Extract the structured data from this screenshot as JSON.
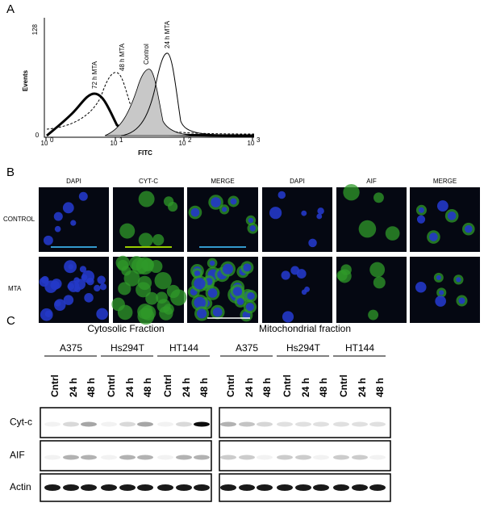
{
  "panel_a": {
    "label": "A",
    "y_axis_label": "Events",
    "y_ticks": [
      "0",
      "128"
    ],
    "x_ticks": [
      {
        "base": "10",
        "exp": "0"
      },
      {
        "base": "10",
        "exp": "1"
      },
      {
        "base": "10",
        "exp": "2"
      },
      {
        "base": "10",
        "exp": "3"
      }
    ],
    "x_axis_label": "FITC",
    "curve_labels": [
      "72 h MTA",
      "48 h MTA",
      "Control",
      "24 h MTA"
    ]
  },
  "panel_b": {
    "label": "B",
    "column_headers": [
      "DAPI",
      "CYT-C",
      "MERGE",
      "DAPI",
      "AIF",
      "MERGE"
    ],
    "row_labels": [
      "CONTROL",
      "MTA"
    ]
  },
  "panel_c": {
    "label": "C",
    "fractions": [
      {
        "title": "Cytosolic Fraction",
        "cell_lines": [
          {
            "name": "A375",
            "lanes": [
              "Cntrl",
              "24 h",
              "48 h"
            ]
          },
          {
            "name": "Hs294T",
            "lanes": [
              "Cntrl",
              "24 h",
              "48 h"
            ]
          },
          {
            "name": "HT144",
            "lanes": [
              "Cntrl",
              "24 h",
              "48 h"
            ]
          }
        ]
      },
      {
        "title": "Mitochondrial fraction",
        "cell_lines": [
          {
            "name": "A375",
            "lanes": [
              "Cntrl",
              "24 h",
              "48 h"
            ]
          },
          {
            "name": "Hs294T",
            "lanes": [
              "Cntrl",
              "24 h",
              "48 h"
            ]
          },
          {
            "name": "HT144",
            "lanes": [
              "Cntrl",
              "24 h",
              "48 h"
            ]
          }
        ]
      }
    ],
    "blots": [
      "Cyt-c",
      "AIF",
      "Actin"
    ]
  }
}
